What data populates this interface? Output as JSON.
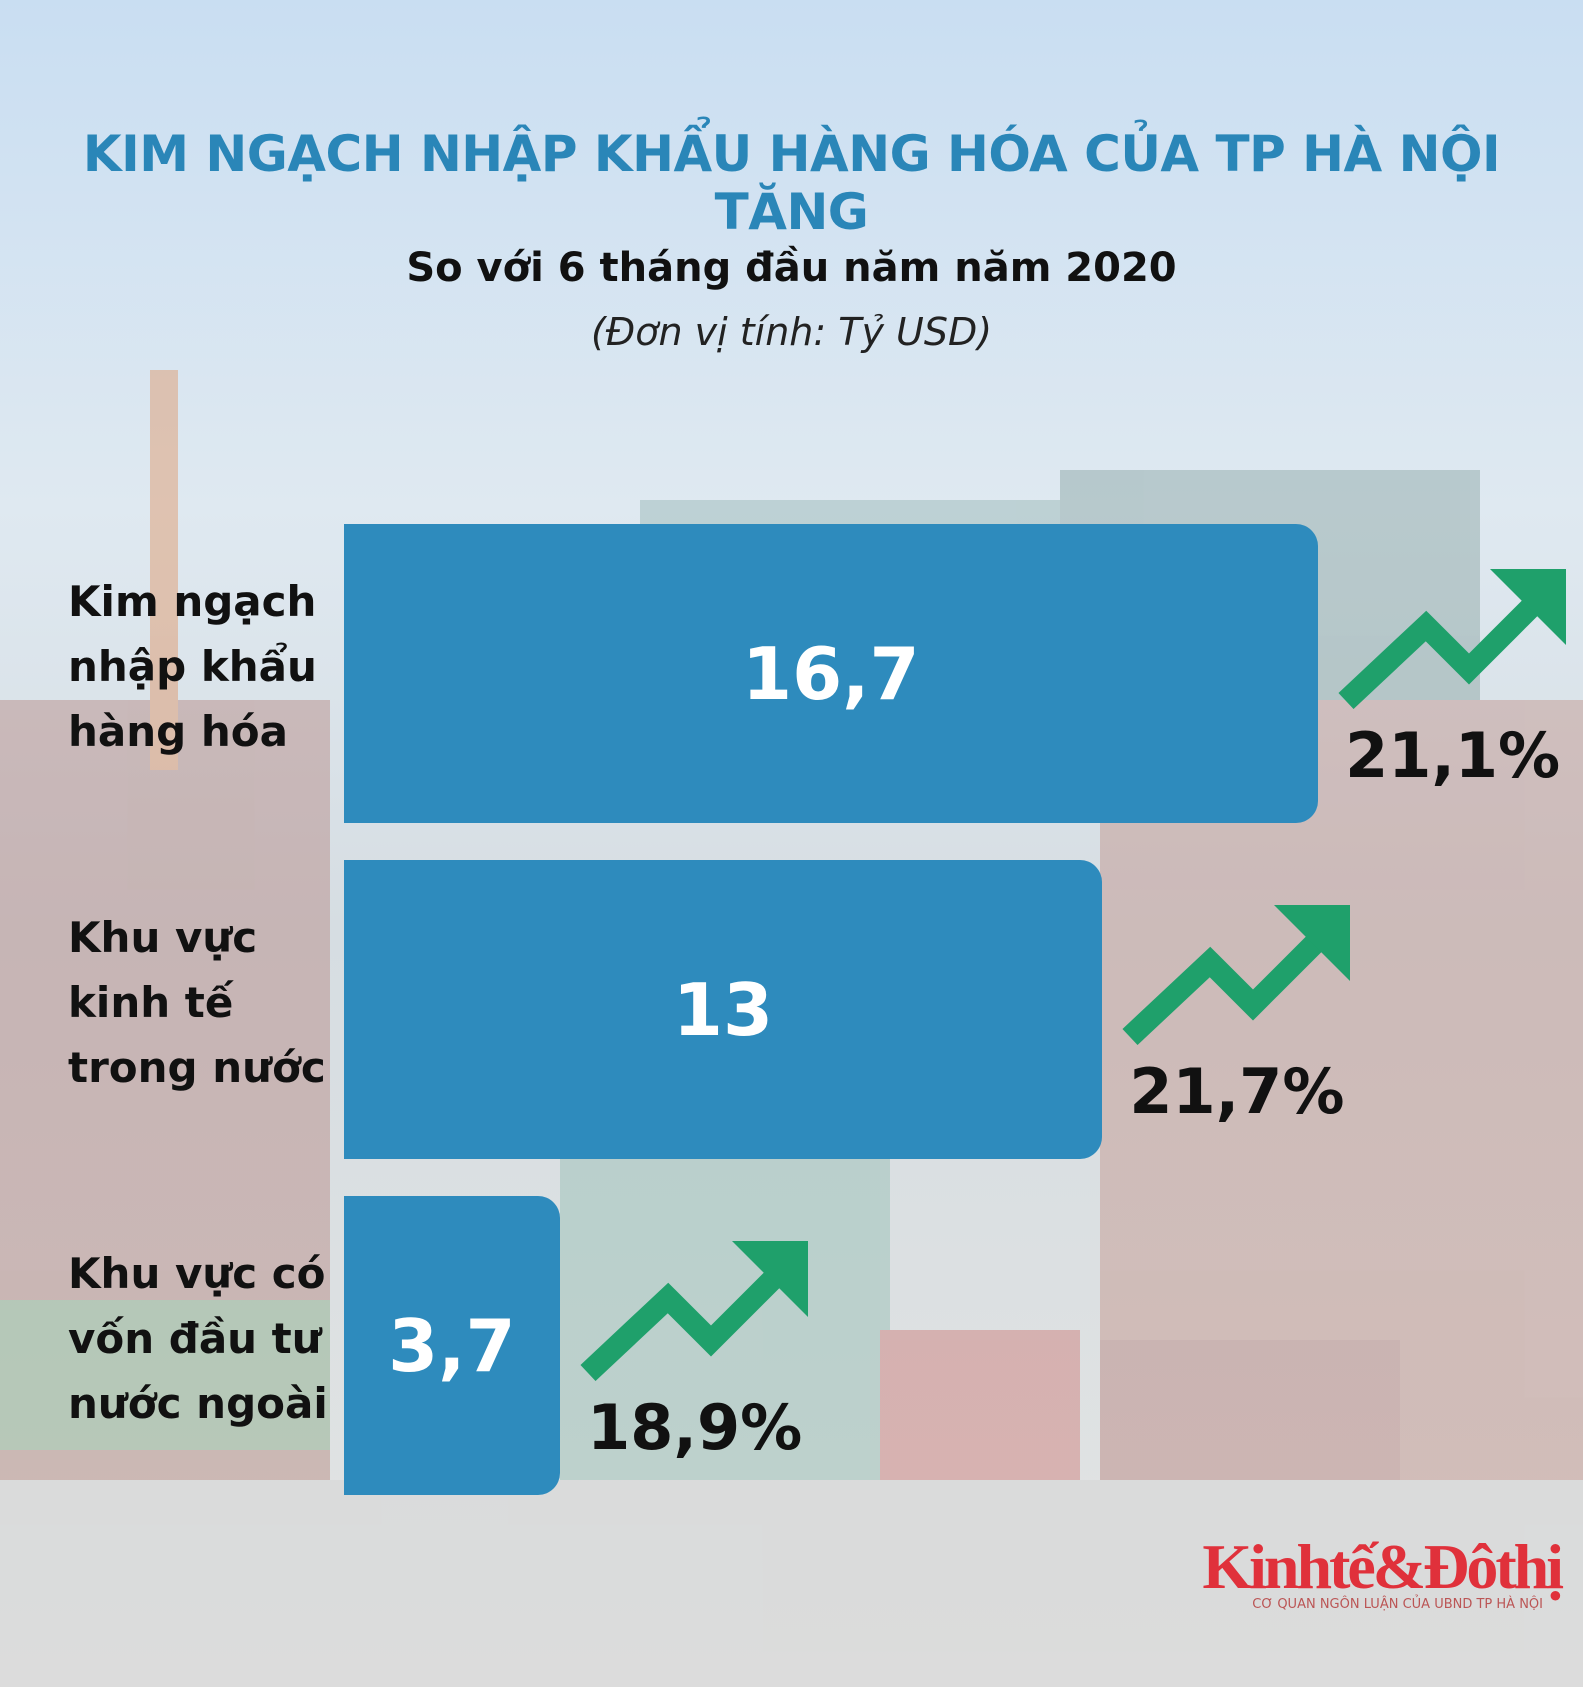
{
  "chart_data": {
    "type": "bar",
    "orientation": "horizontal",
    "title": "KIM NGẠCH NHẬP KHẨU HÀNG HÓA CỦA TP HÀ NỘI TĂNG",
    "subtitle": "So với 6 tháng đầu năm năm 2020",
    "unit": "(Đơn vị tính: Tỷ USD)",
    "categories": [
      "Kim ngạch nhập khẩu hàng hóa",
      "Khu vực kinh tế trong nước",
      "Khu vực có vốn đầu tư nước ngoài"
    ],
    "values": [
      16.7,
      13,
      3.7
    ],
    "value_labels": [
      "16,7",
      "13",
      "3,7"
    ],
    "color": "#2e8bbd",
    "growth_values": [
      21.1,
      21.7,
      18.9
    ],
    "growth_labels": [
      "21,1%",
      "21,7%",
      "18,9%"
    ],
    "growth_color": "#1fa06b",
    "logo": "Kinhtế&Đôthị",
    "logo_tagline": "CƠ QUAN NGÔN LUẬN CỦA UBND TP HÀ NỘI"
  }
}
